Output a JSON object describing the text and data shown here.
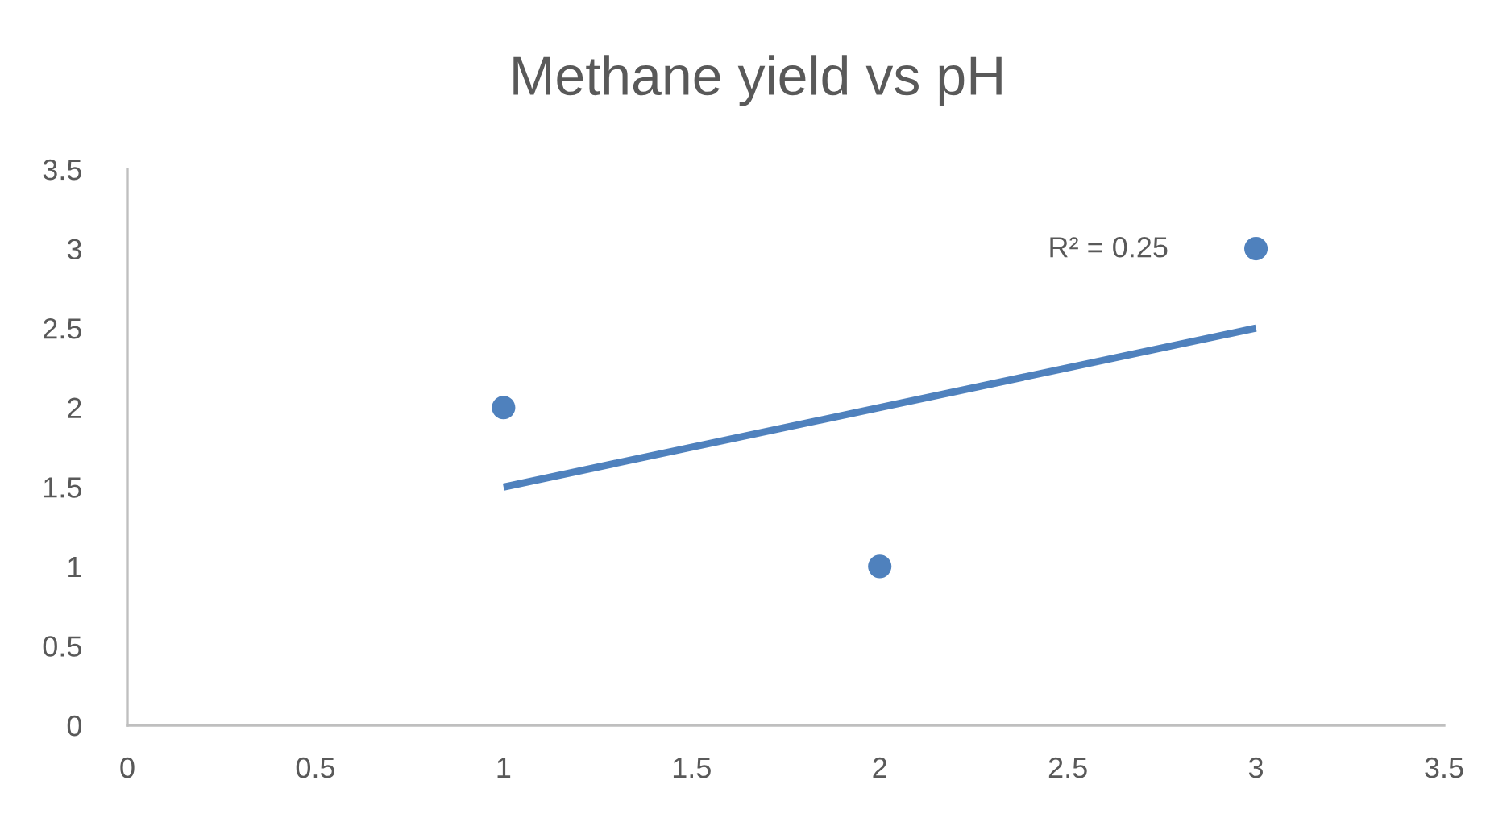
{
  "chart_data": {
    "type": "scatter",
    "title": "Methane yield vs pH",
    "series": [
      {
        "color": "#4f81bd",
        "x": [
          1,
          2,
          3
        ],
        "values": [
          2,
          1,
          3
        ]
      },
      {
        "type": "line",
        "color": "#4f81bd",
        "x": [
          1,
          3
        ],
        "values": [
          1.5,
          2.5
        ],
        "marker": "none",
        "line_style": "solid"
      }
    ],
    "marker": "circle",
    "xlim": [
      0,
      3.5
    ],
    "xticks": [
      0,
      0.5,
      1,
      1.5,
      2,
      2.5,
      3,
      3.5
    ],
    "ylim": [
      0,
      3.5
    ],
    "yticks": [
      0,
      0.5,
      1,
      1.5,
      2,
      2.5,
      3,
      3.5
    ],
    "grid": false,
    "annotations": [
      "R² = 0.25"
    ]
  }
}
